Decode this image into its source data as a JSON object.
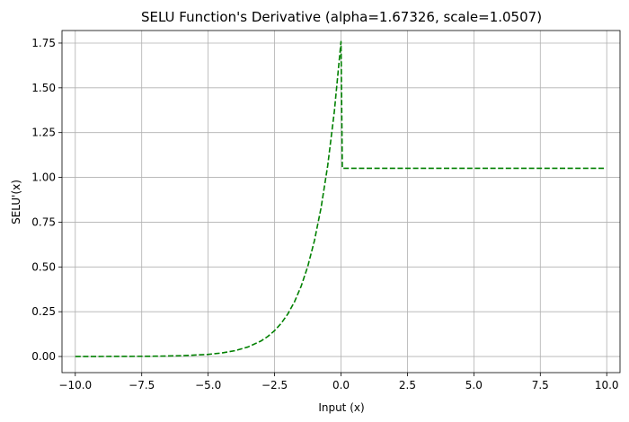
{
  "chart_data": {
    "type": "line",
    "title": "SELU Function's Derivative (alpha=1.67326, scale=1.0507)",
    "xlabel": "Input (x)",
    "ylabel": "SELU'(x)",
    "xlim": [
      -10.5,
      10.5
    ],
    "ylim": [
      -0.09,
      1.82
    ],
    "xticks": [
      -10,
      -7.5,
      -5,
      -2.5,
      0,
      2.5,
      5,
      7.5,
      10
    ],
    "xtick_labels": [
      "−10.0",
      "−7.5",
      "−5.0",
      "−2.5",
      "0.0",
      "2.5",
      "5.0",
      "7.5",
      "10.0"
    ],
    "yticks": [
      0,
      0.25,
      0.5,
      0.75,
      1.0,
      1.25,
      1.5,
      1.75
    ],
    "ytick_labels": [
      "0.00",
      "0.25",
      "0.50",
      "0.75",
      "1.00",
      "1.25",
      "1.50",
      "1.75"
    ],
    "grid": true,
    "line_style": "dashed",
    "line_color": "#008000",
    "series": [
      {
        "x": [
          -10,
          -9,
          -8,
          -7,
          -6,
          -5,
          -4.5,
          -4,
          -3.5,
          -3,
          -2.75,
          -2.5,
          -2.25,
          -2,
          -1.75,
          -1.5,
          -1.25,
          -1,
          -0.75,
          -0.5,
          -0.25,
          0,
          0.05,
          1,
          2,
          3,
          4,
          5,
          6,
          7,
          8,
          9,
          9.9
        ],
        "y": [
          0.0001,
          0.0002,
          0.0006,
          0.0016,
          0.0043,
          0.0118,
          0.0195,
          0.0322,
          0.0531,
          0.0875,
          0.1124,
          0.1443,
          0.1853,
          0.2379,
          0.3055,
          0.3923,
          0.5037,
          0.6468,
          0.8305,
          1.0664,
          1.3692,
          1.7581,
          1.0507,
          1.0507,
          1.0507,
          1.0507,
          1.0507,
          1.0507,
          1.0507,
          1.0507,
          1.0507,
          1.0507,
          1.0507
        ]
      }
    ]
  }
}
